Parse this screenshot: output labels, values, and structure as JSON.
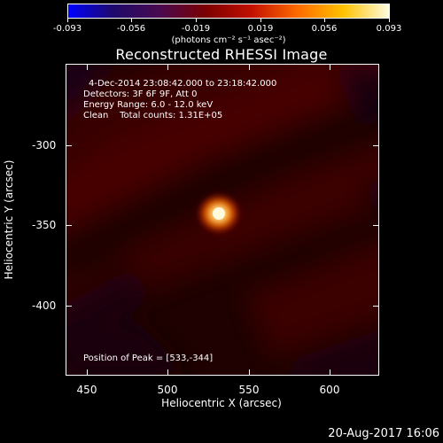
{
  "colorbar": {
    "gradient": [
      "#0000ff",
      "#1f0a6a",
      "#4a0a50",
      "#7a0000",
      "#c21000",
      "#ff6a00",
      "#ffc200",
      "#fffce0"
    ],
    "tick_labels": [
      "-0.093",
      "-0.056",
      "-0.019",
      "0.019",
      "0.056",
      "0.093"
    ],
    "units_label": "(photons cm⁻² s⁻¹ asec⁻²)"
  },
  "plot": {
    "title": "Reconstructed RHESSI Image",
    "info_lines": [
      "4-Dec-2014 23:08:42.000 to 23:18:42.000",
      "Detectors: 3F 6F 9F, Att 0",
      "Energy Range: 6.0 - 12.0 keV",
      "Clean    Total counts: 1.31E+05"
    ],
    "peak_text": "Position of Peak = [533,-344]",
    "x_ticks": [
      "450",
      "500",
      "550",
      "600"
    ],
    "y_ticks": [
      "-300",
      "-350",
      "-400"
    ],
    "x_label": "Heliocentric X (arcsec)",
    "y_label": "Heliocentric Y (arcsec)",
    "peak_color": "#fffce0"
  },
  "footer": {
    "date": "20-Aug-2017 16:06"
  }
}
